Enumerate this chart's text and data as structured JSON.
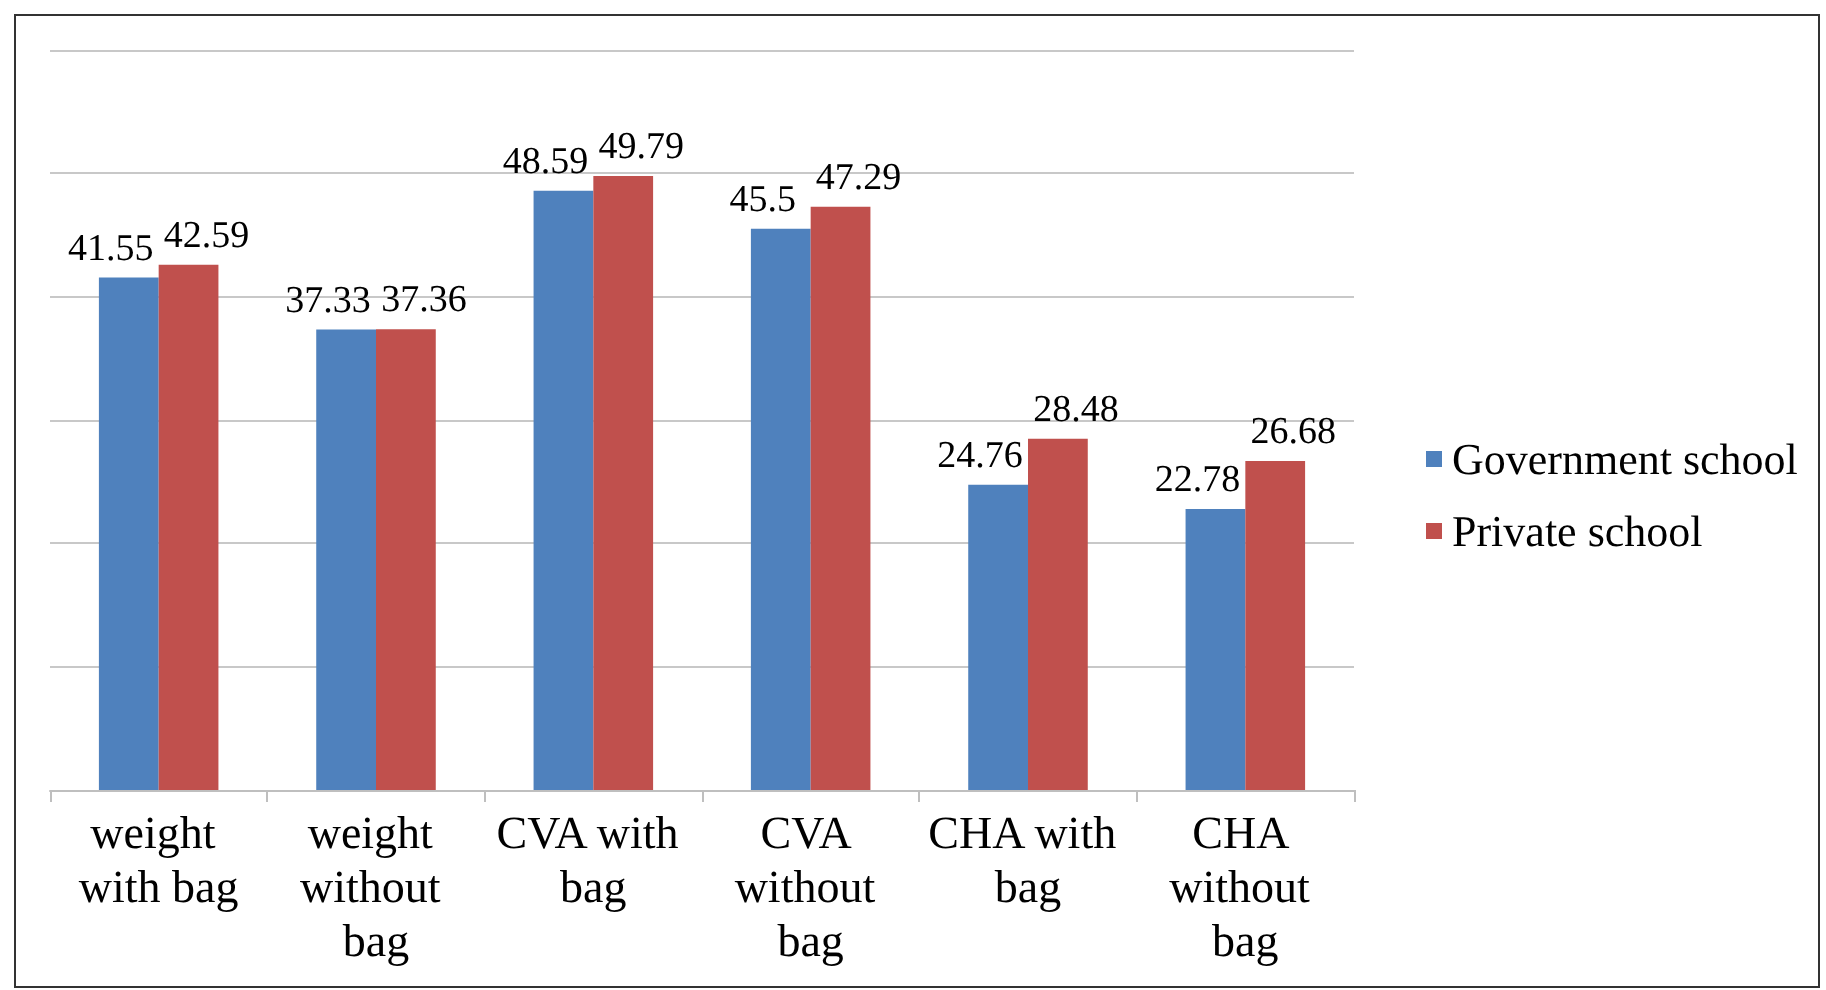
{
  "chart_data": {
    "type": "bar",
    "categories": [
      "weight with bag",
      "weight without bag",
      "CVA with bag",
      "CVA without bag",
      "CHA with bag",
      "CHA without bag"
    ],
    "series": [
      {
        "name": "Government school",
        "color": "#4f81bd",
        "values": [
          41.55,
          37.33,
          48.59,
          45.5,
          24.76,
          22.78
        ]
      },
      {
        "name": "Private school",
        "color": "#c0504d",
        "values": [
          42.59,
          37.36,
          49.79,
          47.29,
          28.48,
          26.68
        ]
      }
    ],
    "ylim": [
      0,
      60
    ],
    "yticks": [
      0,
      10,
      20,
      30,
      40,
      50,
      60
    ],
    "tick_labels": "x",
    "grid": "y",
    "legend": "right",
    "data_labels": true
  }
}
